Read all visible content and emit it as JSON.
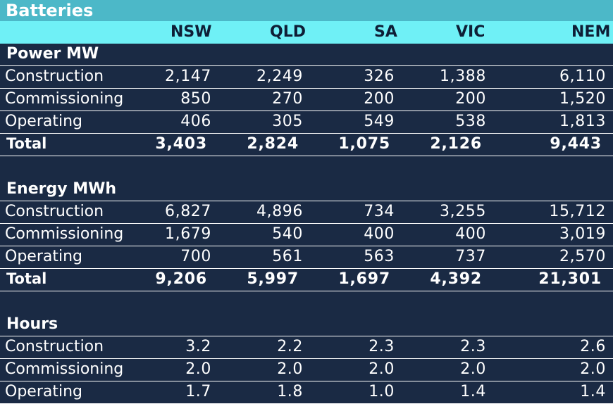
{
  "title": "Batteries",
  "columns": [
    "NSW",
    "QLD",
    "SA",
    "VIC",
    "NEM"
  ],
  "chart_data": {
    "type": "table",
    "title": "Batteries",
    "columns": [
      "NSW",
      "QLD",
      "SA",
      "VIC",
      "NEM"
    ],
    "sections": [
      {
        "name": "Power MW",
        "rows": [
          {
            "label": "Construction",
            "values": [
              "2,147",
              "2,249",
              "326",
              "1,388",
              "6,110"
            ]
          },
          {
            "label": "Commissioning",
            "values": [
              "850",
              "270",
              "200",
              "200",
              "1,520"
            ]
          },
          {
            "label": "Operating",
            "values": [
              "406",
              "305",
              "549",
              "538",
              "1,813"
            ]
          }
        ],
        "total": {
          "label": "Total",
          "values": [
            "3,403",
            "2,824",
            "1,075",
            "2,126",
            "9,443"
          ]
        }
      },
      {
        "name": "Energy MWh",
        "rows": [
          {
            "label": "Construction",
            "values": [
              "6,827",
              "4,896",
              "734",
              "3,255",
              "15,712"
            ]
          },
          {
            "label": "Commissioning",
            "values": [
              "1,679",
              "540",
              "400",
              "400",
              "3,019"
            ]
          },
          {
            "label": "Operating",
            "values": [
              "700",
              "561",
              "563",
              "737",
              "2,570"
            ]
          }
        ],
        "total": {
          "label": "Total",
          "values": [
            "9,206",
            "5,997",
            "1,697",
            "4,392",
            "21,301"
          ]
        }
      },
      {
        "name": "Hours",
        "rows": [
          {
            "label": "Construction",
            "values": [
              "3.2",
              "2.2",
              "2.3",
              "2.3",
              "2.6"
            ]
          },
          {
            "label": "Commissioning",
            "values": [
              "2.0",
              "2.0",
              "2.0",
              "2.0",
              "2.0"
            ]
          },
          {
            "label": "Operating",
            "values": [
              "1.7",
              "1.8",
              "1.0",
              "1.4",
              "1.4"
            ]
          }
        ]
      }
    ]
  },
  "colors": {
    "title_bg": "#4cb8c8",
    "header_bg": "#6ff0f6",
    "body_bg": "#1a2a44",
    "text": "#ffffff"
  }
}
